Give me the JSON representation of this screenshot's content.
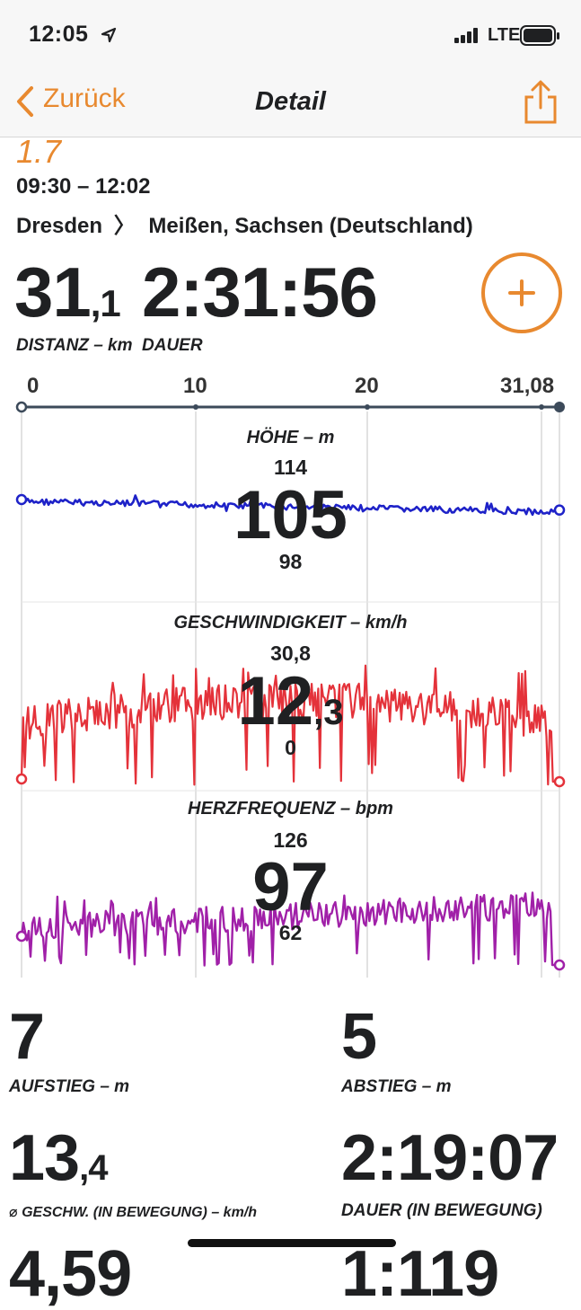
{
  "status_bar": {
    "time": "12:05",
    "network": "LTE"
  },
  "nav": {
    "back_label": "Zurück",
    "title": "Detail"
  },
  "header": {
    "number_partial": "1.7",
    "time_range": "09:30 – 12:02",
    "route_from": "Dresden",
    "route_to": "Meißen, Sachsen (Deutschland)",
    "distance_int": "31",
    "distance_dec": ",1",
    "distance_label": "DISTANZ – km",
    "duration": "2:31:56",
    "duration_label": "DAUER"
  },
  "axis": {
    "ticks": [
      "0",
      "10",
      "20",
      "31,08"
    ]
  },
  "charts": {
    "elevation": {
      "title": "HÖHE – m",
      "max": "114",
      "value": "105",
      "value_dec": "",
      "min": "98"
    },
    "speed": {
      "title": "GESCHWINDIGKEIT – km/h",
      "max": "30,8",
      "value": "12",
      "value_dec": ",3",
      "min": "0"
    },
    "heart": {
      "title": "HERZFREQUENZ – bpm",
      "max": "126",
      "value": "97",
      "value_dec": "",
      "min": "62"
    }
  },
  "stats": {
    "ascent": {
      "value": "7",
      "label": "AUFSTIEG – m"
    },
    "descent": {
      "value": "5",
      "label": "ABSTIEG – m"
    },
    "avg_speed": {
      "value_int": "13",
      "value_dec": ",4",
      "label": "⌀ GESCHW. (IN BEWEGUNG) – km/h"
    },
    "moving_duration": {
      "value": "2:19:07",
      "label": "DAUER (IN BEWEGUNG)"
    },
    "next_row_left": "4,59",
    "next_row_right": "1:119"
  },
  "colors": {
    "accent": "#e8892f",
    "elevation": "#1e22c8",
    "speed": "#e4323a",
    "heart": "#a020a8"
  }
}
